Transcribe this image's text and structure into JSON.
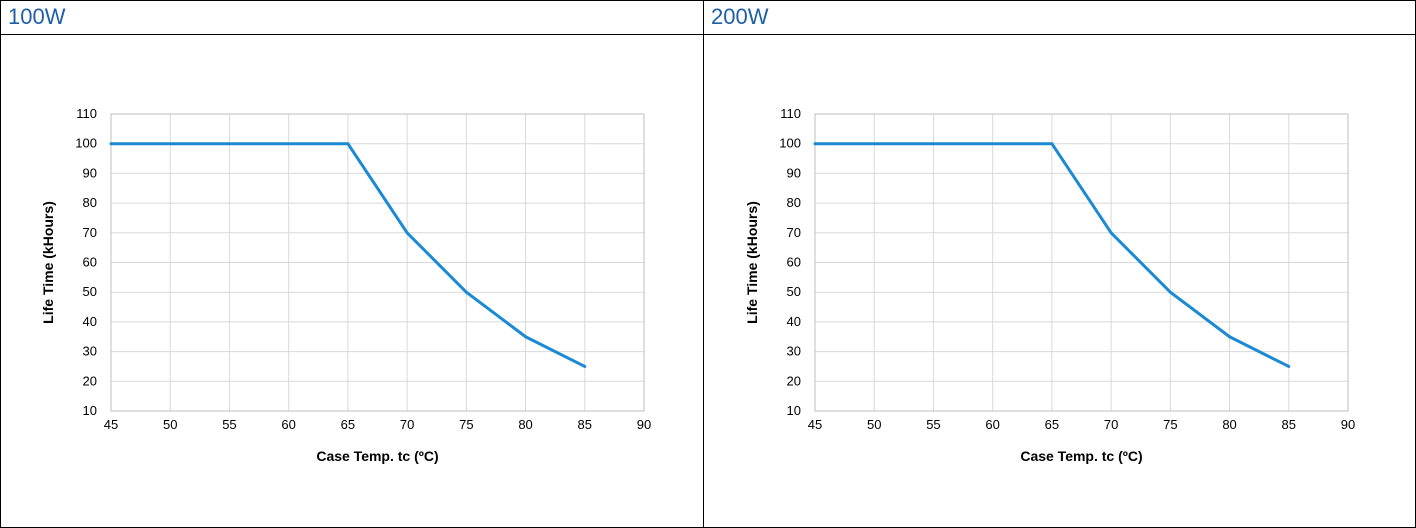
{
  "panels": [
    {
      "title": "100W"
    },
    {
      "title": "200W"
    }
  ],
  "colors": {
    "line": "#1a8ad4",
    "title": "#1f5fa8",
    "grid": "#d9d9d9"
  },
  "chart_data": [
    {
      "type": "line",
      "title": "",
      "xlabel": "Case Temp. tc (ºC)",
      "ylabel": "Life Time (kHours)",
      "xlim": [
        45,
        90
      ],
      "ylim": [
        10,
        110
      ],
      "xticks": [
        45,
        50,
        55,
        60,
        65,
        70,
        75,
        80,
        85,
        90
      ],
      "yticks": [
        10,
        20,
        30,
        40,
        50,
        60,
        70,
        80,
        90,
        100,
        110
      ],
      "grid": true,
      "series": [
        {
          "x": [
            45,
            65,
            70,
            75,
            80,
            85
          ],
          "y": [
            100,
            100,
            70,
            50,
            35,
            25
          ]
        }
      ]
    },
    {
      "type": "line",
      "title": "",
      "xlabel": "Case Temp. tc (ºC)",
      "ylabel": "Life Time (kHours)",
      "xlim": [
        45,
        90
      ],
      "ylim": [
        10,
        110
      ],
      "xticks": [
        45,
        50,
        55,
        60,
        65,
        70,
        75,
        80,
        85,
        90
      ],
      "yticks": [
        10,
        20,
        30,
        40,
        50,
        60,
        70,
        80,
        90,
        100,
        110
      ],
      "grid": true,
      "series": [
        {
          "x": [
            45,
            65,
            70,
            75,
            80,
            85
          ],
          "y": [
            100,
            100,
            70,
            50,
            35,
            25
          ]
        }
      ]
    }
  ]
}
